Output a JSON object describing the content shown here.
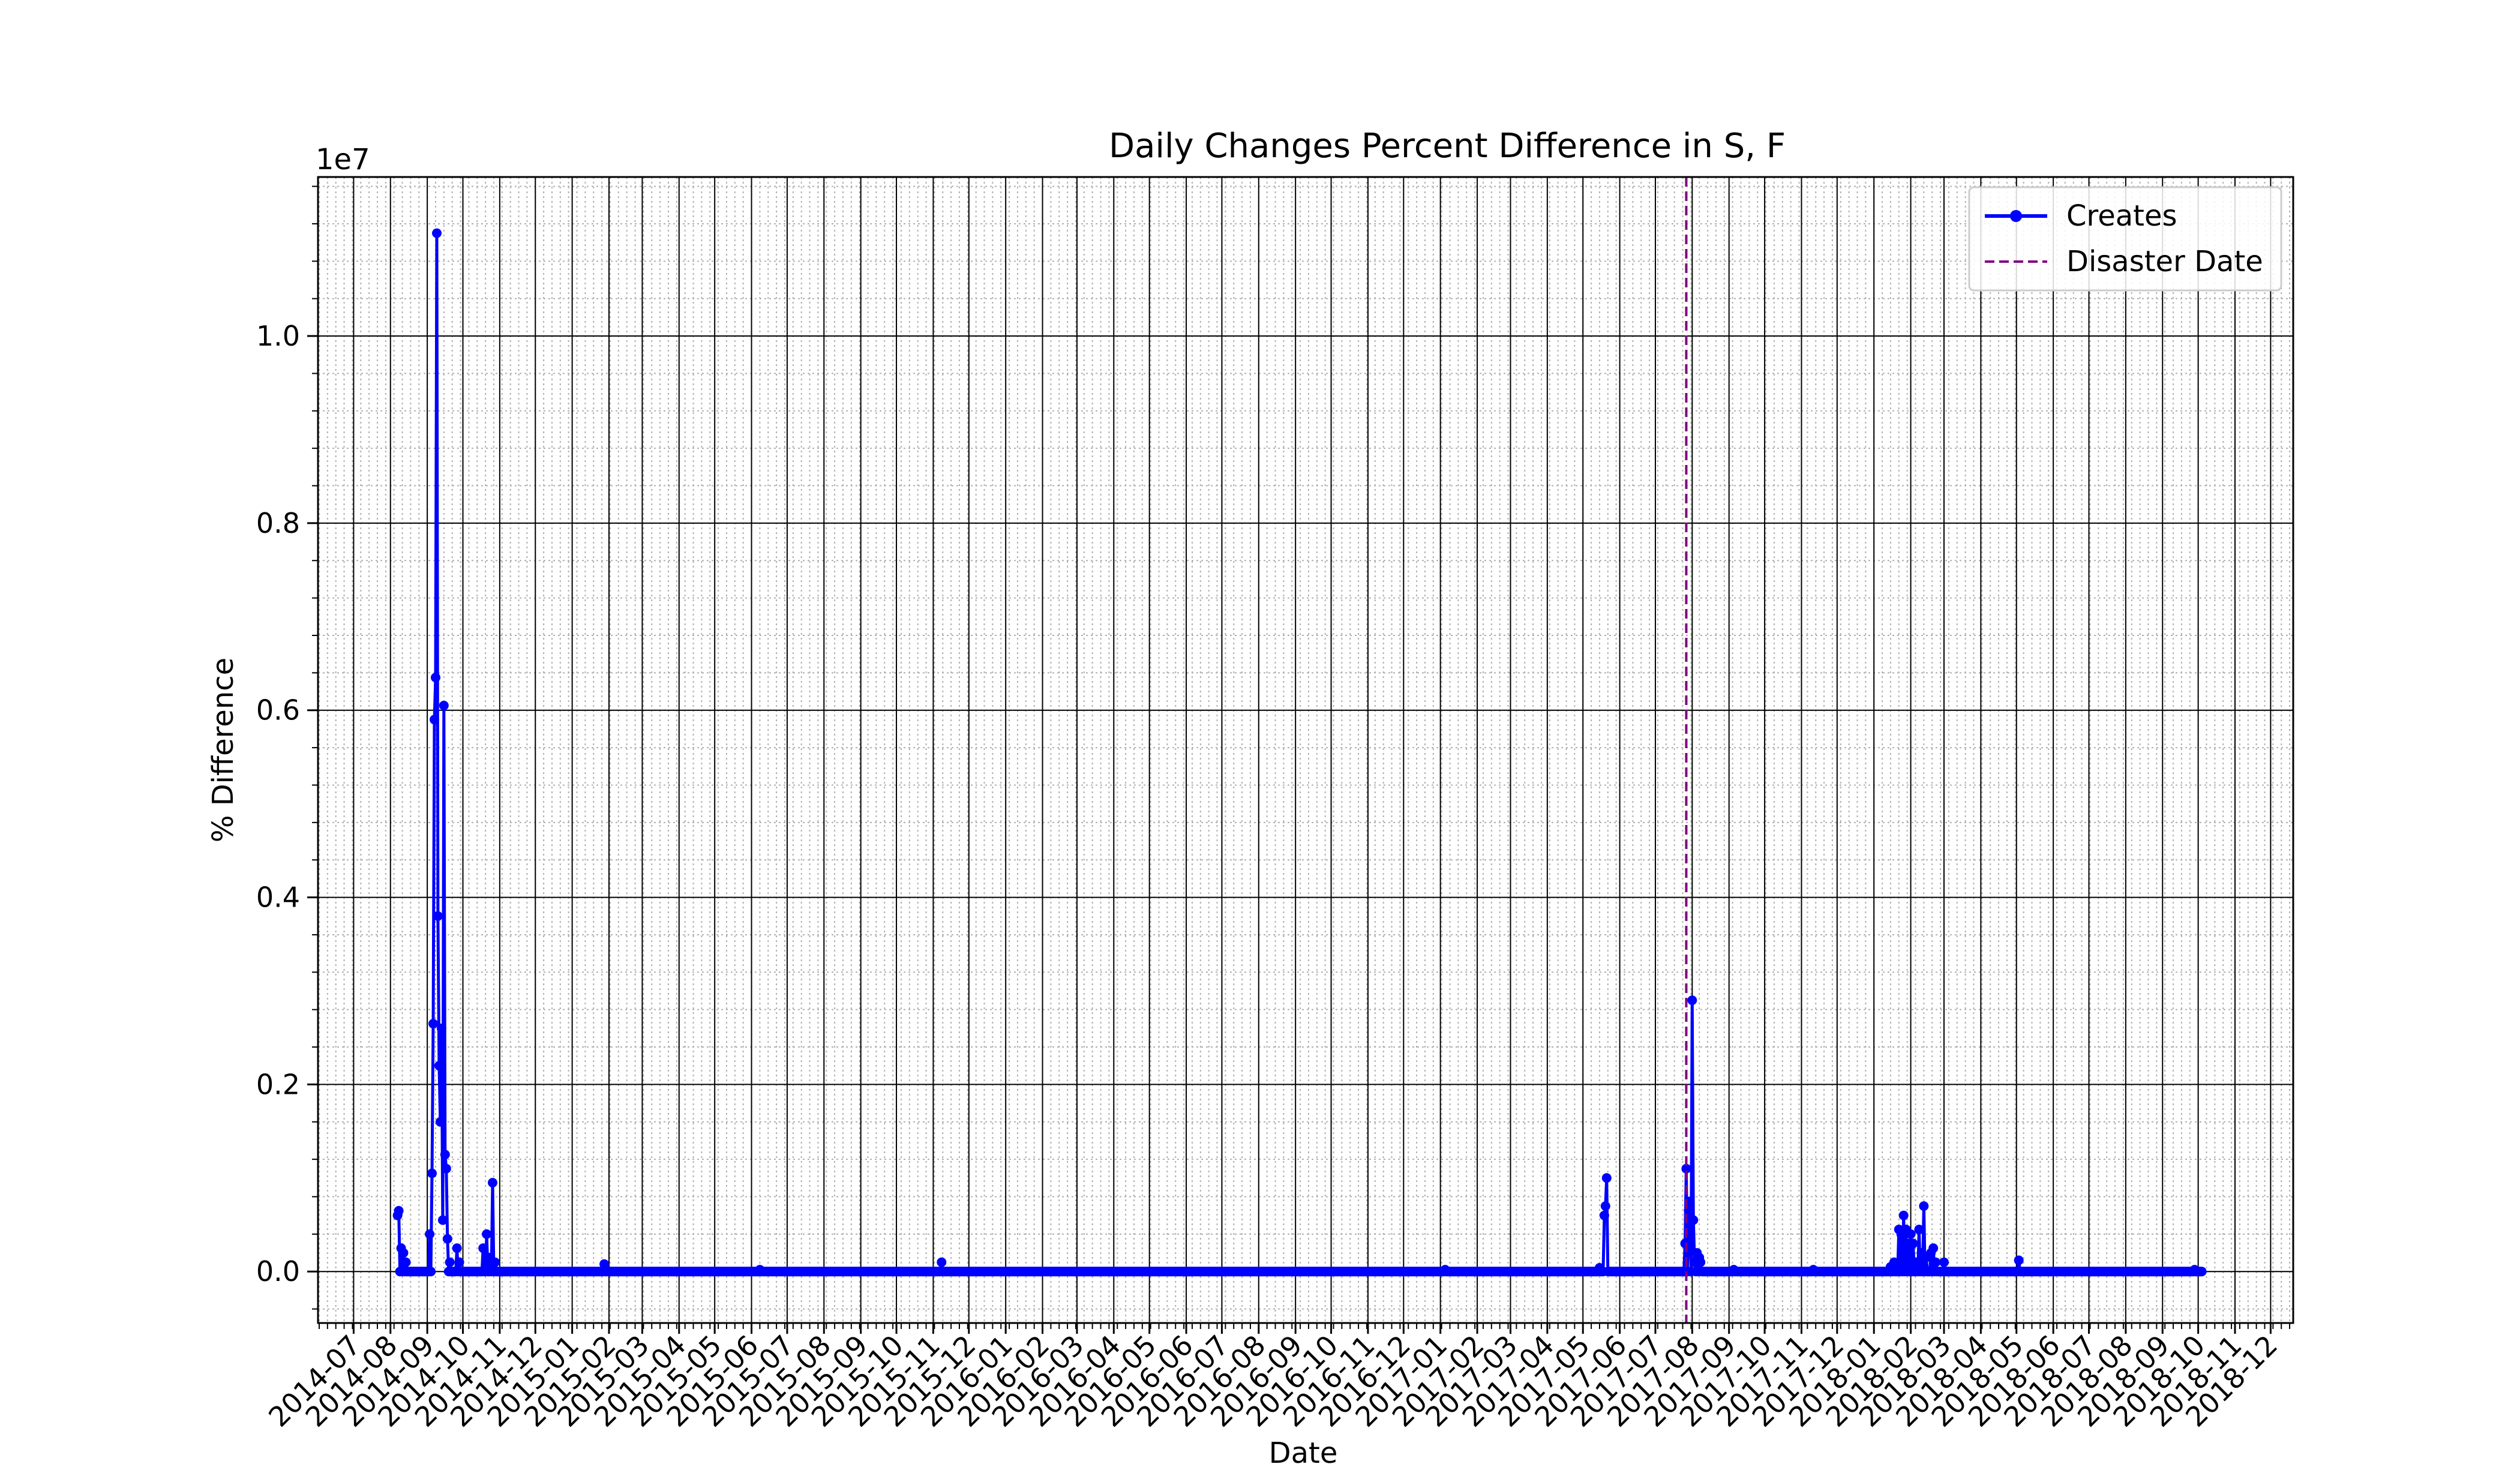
{
  "chart_data": {
    "type": "line",
    "title": "Daily Changes Percent Difference in S, F",
    "xlabel": "Date",
    "ylabel": "% Difference",
    "y_offset_label": "1e7",
    "xlim": [
      "2014-06-01",
      "2018-12-20"
    ],
    "ylim": [
      -0.055,
      1.17
    ],
    "y_ticks": [
      0.0,
      0.2,
      0.4,
      0.6,
      0.8,
      1.0
    ],
    "y_tick_labels": [
      "0.0",
      "0.2",
      "0.4",
      "0.6",
      "0.8",
      "1.0"
    ],
    "x_ticks": [
      "2014-07-01",
      "2014-08-01",
      "2014-09-01",
      "2014-10-01",
      "2014-11-01",
      "2014-12-01",
      "2015-01-01",
      "2015-02-01",
      "2015-03-01",
      "2015-04-01",
      "2015-05-01",
      "2015-06-01",
      "2015-07-01",
      "2015-08-01",
      "2015-09-01",
      "2015-10-01",
      "2015-11-01",
      "2015-12-01",
      "2016-01-01",
      "2016-02-01",
      "2016-03-01",
      "2016-04-01",
      "2016-05-01",
      "2016-06-01",
      "2016-07-01",
      "2016-08-01",
      "2016-09-01",
      "2016-10-01",
      "2016-11-01",
      "2016-12-01",
      "2017-01-01",
      "2017-02-01",
      "2017-03-01",
      "2017-04-01",
      "2017-05-01",
      "2017-06-01",
      "2017-07-01",
      "2017-08-01",
      "2017-09-01",
      "2017-10-01",
      "2017-11-01",
      "2017-12-01",
      "2018-01-01",
      "2018-02-01",
      "2018-03-01",
      "2018-04-01",
      "2018-05-01",
      "2018-06-01",
      "2018-07-01",
      "2018-08-01",
      "2018-09-01",
      "2018-10-01",
      "2018-11-01",
      "2018-12-01"
    ],
    "x_tick_labels": [
      "2014-07",
      "2014-08",
      "2014-09",
      "2014-10",
      "2014-11",
      "2014-12",
      "2015-01",
      "2015-02",
      "2015-03",
      "2015-04",
      "2015-05",
      "2015-06",
      "2015-07",
      "2015-08",
      "2015-09",
      "2015-10",
      "2015-11",
      "2015-12",
      "2016-01",
      "2016-02",
      "2016-03",
      "2016-04",
      "2016-05",
      "2016-06",
      "2016-07",
      "2016-08",
      "2016-09",
      "2016-10",
      "2016-11",
      "2016-12",
      "2017-01",
      "2017-02",
      "2017-03",
      "2017-04",
      "2017-05",
      "2017-06",
      "2017-07",
      "2017-08",
      "2017-09",
      "2017-10",
      "2017-11",
      "2017-12",
      "2018-01",
      "2018-02",
      "2018-03",
      "2018-04",
      "2018-05",
      "2018-06",
      "2018-07",
      "2018-08",
      "2018-09",
      "2018-10",
      "2018-11",
      "2018-12"
    ],
    "grid": {
      "major": true,
      "minor": true
    },
    "legend_position": "top-right",
    "series": [
      {
        "name": "Creates",
        "color": "#0000ff",
        "marker": "circle",
        "baseline": {
          "start": "2014-08-07",
          "end": "2018-10-04",
          "value": 0.0
        },
        "spikes": [
          {
            "date": "2014-08-07",
            "value": 0.06
          },
          {
            "date": "2014-08-08",
            "value": 0.065
          },
          {
            "date": "2014-08-10",
            "value": 0.025
          },
          {
            "date": "2014-08-12",
            "value": 0.02
          },
          {
            "date": "2014-08-14",
            "value": 0.01
          },
          {
            "date": "2014-09-03",
            "value": 0.04
          },
          {
            "date": "2014-09-05",
            "value": 0.105
          },
          {
            "date": "2014-09-06",
            "value": 0.265
          },
          {
            "date": "2014-09-07",
            "value": 0.59
          },
          {
            "date": "2014-09-08",
            "value": 0.635
          },
          {
            "date": "2014-09-09",
            "value": 1.11
          },
          {
            "date": "2014-09-10",
            "value": 0.38
          },
          {
            "date": "2014-09-11",
            "value": 0.22
          },
          {
            "date": "2014-09-12",
            "value": 0.16
          },
          {
            "date": "2014-09-13",
            "value": 0.26
          },
          {
            "date": "2014-09-14",
            "value": 0.055
          },
          {
            "date": "2014-09-15",
            "value": 0.605
          },
          {
            "date": "2014-09-16",
            "value": 0.125
          },
          {
            "date": "2014-09-17",
            "value": 0.11
          },
          {
            "date": "2014-09-18",
            "value": 0.035
          },
          {
            "date": "2014-09-20",
            "value": 0.01
          },
          {
            "date": "2014-09-26",
            "value": 0.025
          },
          {
            "date": "2014-09-28",
            "value": 0.01
          },
          {
            "date": "2014-10-18",
            "value": 0.025
          },
          {
            "date": "2014-10-21",
            "value": 0.04
          },
          {
            "date": "2014-10-24",
            "value": 0.015
          },
          {
            "date": "2014-10-26",
            "value": 0.095
          },
          {
            "date": "2014-10-28",
            "value": 0.01
          },
          {
            "date": "2015-01-28",
            "value": 0.008
          },
          {
            "date": "2015-06-08",
            "value": 0.002
          },
          {
            "date": "2015-11-08",
            "value": 0.01
          },
          {
            "date": "2017-01-05",
            "value": 0.002
          },
          {
            "date": "2017-05-15",
            "value": 0.004
          },
          {
            "date": "2017-05-19",
            "value": 0.06
          },
          {
            "date": "2017-05-20",
            "value": 0.07
          },
          {
            "date": "2017-05-21",
            "value": 0.1
          },
          {
            "date": "2017-07-26",
            "value": 0.03
          },
          {
            "date": "2017-07-27",
            "value": 0.11
          },
          {
            "date": "2017-07-29",
            "value": 0.065
          },
          {
            "date": "2017-07-30",
            "value": 0.075
          },
          {
            "date": "2017-08-01",
            "value": 0.29
          },
          {
            "date": "2017-08-02",
            "value": 0.055
          },
          {
            "date": "2017-08-03",
            "value": 0.01
          },
          {
            "date": "2017-08-05",
            "value": 0.02
          },
          {
            "date": "2017-08-07",
            "value": 0.015
          },
          {
            "date": "2017-08-08",
            "value": 0.01
          },
          {
            "date": "2017-09-05",
            "value": 0.002
          },
          {
            "date": "2017-11-11",
            "value": 0.002
          },
          {
            "date": "2018-01-15",
            "value": 0.005
          },
          {
            "date": "2018-01-18",
            "value": 0.01
          },
          {
            "date": "2018-01-22",
            "value": 0.045
          },
          {
            "date": "2018-01-24",
            "value": 0.04
          },
          {
            "date": "2018-01-26",
            "value": 0.06
          },
          {
            "date": "2018-01-28",
            "value": 0.045
          },
          {
            "date": "2018-01-30",
            "value": 0.03
          },
          {
            "date": "2018-02-01",
            "value": 0.04
          },
          {
            "date": "2018-02-03",
            "value": 0.03
          },
          {
            "date": "2018-02-06",
            "value": 0.01
          },
          {
            "date": "2018-02-08",
            "value": 0.045
          },
          {
            "date": "2018-02-10",
            "value": 0.02
          },
          {
            "date": "2018-02-12",
            "value": 0.07
          },
          {
            "date": "2018-02-14",
            "value": 0.015
          },
          {
            "date": "2018-02-18",
            "value": 0.02
          },
          {
            "date": "2018-02-20",
            "value": 0.025
          },
          {
            "date": "2018-02-22",
            "value": 0.01
          },
          {
            "date": "2018-03-01",
            "value": 0.01
          },
          {
            "date": "2018-05-03",
            "value": 0.012
          },
          {
            "date": "2018-09-28",
            "value": 0.002
          }
        ]
      },
      {
        "name": "Disaster Date",
        "color": "#800080",
        "style": "dashed",
        "vertical_line_date": "2017-07-27"
      }
    ]
  }
}
